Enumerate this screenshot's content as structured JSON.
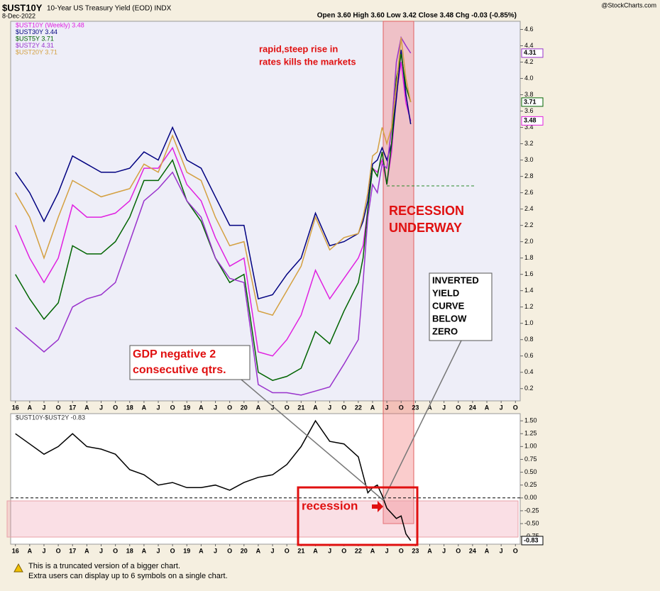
{
  "header": {
    "symbol": "$UST10Y",
    "description": "10-Year US Treasury Yield (EOD) INDX",
    "date": "8-Dec-2022",
    "source": "@StockCharts.com",
    "quote": "Open 3.60 High 3.60 Low 3.42 Close 3.48 Chg -0.03 (-0.85%)"
  },
  "chart_data": [
    {
      "type": "line",
      "x": [
        "2016-01",
        "2016-04",
        "2016-07",
        "2016-10",
        "2017-01",
        "2017-04",
        "2017-07",
        "2017-10",
        "2018-01",
        "2018-04",
        "2018-07",
        "2018-10",
        "2019-01",
        "2019-04",
        "2019-07",
        "2019-10",
        "2020-01",
        "2020-04",
        "2020-07",
        "2020-10",
        "2021-01",
        "2021-04",
        "2021-07",
        "2021-10",
        "2022-01",
        "2022-02",
        "2022-03",
        "2022-04",
        "2022-05",
        "2022-06",
        "2022-07",
        "2022-08",
        "2022-09",
        "2022-10",
        "2022-11",
        "2022-12"
      ],
      "series": [
        {
          "name": "$UST10Y (Weekly) 3.48",
          "color": "#e020e0",
          "values": [
            2.2,
            1.8,
            1.5,
            1.8,
            2.45,
            2.3,
            2.3,
            2.35,
            2.5,
            2.9,
            2.9,
            3.15,
            2.7,
            2.5,
            2.05,
            1.7,
            1.8,
            0.65,
            0.6,
            0.8,
            1.1,
            1.65,
            1.3,
            1.55,
            1.8,
            1.95,
            2.4,
            2.9,
            2.85,
            3.0,
            2.7,
            3.1,
            3.8,
            4.2,
            3.7,
            3.48
          ]
        },
        {
          "name": "$UST30Y 3.44",
          "color": "#000080",
          "values": [
            2.85,
            2.6,
            2.25,
            2.6,
            3.05,
            2.95,
            2.85,
            2.85,
            2.9,
            3.1,
            3.0,
            3.4,
            3.0,
            2.9,
            2.55,
            2.2,
            2.2,
            1.3,
            1.35,
            1.6,
            1.8,
            2.35,
            1.95,
            2.0,
            2.1,
            2.25,
            2.5,
            2.95,
            3.0,
            3.15,
            3.0,
            3.2,
            3.75,
            4.35,
            3.8,
            3.44
          ]
        },
        {
          "name": "$UST5Y 3.71",
          "color": "#006400",
          "values": [
            1.6,
            1.3,
            1.05,
            1.25,
            1.95,
            1.85,
            1.85,
            2.0,
            2.3,
            2.75,
            2.75,
            3.0,
            2.5,
            2.25,
            1.8,
            1.5,
            1.6,
            0.4,
            0.3,
            0.35,
            0.45,
            0.9,
            0.75,
            1.15,
            1.5,
            1.8,
            2.4,
            2.9,
            2.8,
            3.1,
            2.7,
            3.2,
            4.0,
            4.3,
            3.9,
            3.71
          ]
        },
        {
          "name": "$UST2Y 4.31",
          "color": "#9932cc",
          "values": [
            0.95,
            0.8,
            0.65,
            0.8,
            1.2,
            1.3,
            1.35,
            1.5,
            2.0,
            2.5,
            2.65,
            2.85,
            2.5,
            2.3,
            1.8,
            1.55,
            1.5,
            0.25,
            0.15,
            0.15,
            0.12,
            0.17,
            0.22,
            0.5,
            0.8,
            1.5,
            2.3,
            2.7,
            2.6,
            2.95,
            2.9,
            3.4,
            4.2,
            4.5,
            4.4,
            4.31
          ]
        },
        {
          "name": "$UST20Y 3.71",
          "color": "#d4a040",
          "values": [
            2.6,
            2.3,
            1.8,
            2.3,
            2.75,
            2.65,
            2.55,
            2.6,
            2.65,
            2.95,
            2.85,
            3.3,
            2.85,
            2.75,
            2.3,
            1.95,
            2.0,
            1.15,
            1.1,
            1.4,
            1.7,
            2.3,
            1.9,
            2.05,
            2.1,
            2.3,
            2.6,
            3.05,
            3.1,
            3.4,
            3.2,
            3.4,
            3.9,
            4.5,
            4.0,
            3.71
          ]
        }
      ],
      "xlim": [
        "2015-12",
        "2024-11"
      ],
      "xticks": [
        {
          "value": "2016-01",
          "label": "16"
        },
        {
          "value": "2016-04",
          "label": "A"
        },
        {
          "value": "2016-07",
          "label": "J"
        },
        {
          "value": "2016-10",
          "label": "O"
        },
        {
          "value": "2017-01",
          "label": "17"
        },
        {
          "value": "2017-04",
          "label": "A"
        },
        {
          "value": "2017-07",
          "label": "J"
        },
        {
          "value": "2017-10",
          "label": "O"
        },
        {
          "value": "2018-01",
          "label": "18"
        },
        {
          "value": "2018-04",
          "label": "A"
        },
        {
          "value": "2018-07",
          "label": "J"
        },
        {
          "value": "2018-10",
          "label": "O"
        },
        {
          "value": "2019-01",
          "label": "19"
        },
        {
          "value": "2019-04",
          "label": "A"
        },
        {
          "value": "2019-07",
          "label": "J"
        },
        {
          "value": "2019-10",
          "label": "O"
        },
        {
          "value": "2020-01",
          "label": "20"
        },
        {
          "value": "2020-04",
          "label": "A"
        },
        {
          "value": "2020-07",
          "label": "J"
        },
        {
          "value": "2020-10",
          "label": "O"
        },
        {
          "value": "2021-01",
          "label": "21"
        },
        {
          "value": "2021-04",
          "label": "A"
        },
        {
          "value": "2021-07",
          "label": "J"
        },
        {
          "value": "2021-10",
          "label": "O"
        },
        {
          "value": "2022-01",
          "label": "22"
        },
        {
          "value": "2022-04",
          "label": "A"
        },
        {
          "value": "2022-07",
          "label": "J"
        },
        {
          "value": "2022-10",
          "label": "O"
        },
        {
          "value": "2023-01",
          "label": "23"
        },
        {
          "value": "2023-04",
          "label": "A"
        },
        {
          "value": "2023-07",
          "label": "J"
        },
        {
          "value": "2023-10",
          "label": "O"
        },
        {
          "value": "2024-01",
          "label": "24"
        },
        {
          "value": "2024-04",
          "label": "A"
        },
        {
          "value": "2024-07",
          "label": "J"
        },
        {
          "value": "2024-10",
          "label": "O"
        }
      ],
      "ylim": [
        0.05,
        4.7
      ],
      "yticks": [
        0.2,
        0.4,
        0.6,
        0.8,
        {
          "value": 1,
          "label": "1.0"
        },
        1.2,
        1.4,
        1.6,
        1.8,
        {
          "value": 2,
          "label": "2.0"
        },
        2.2,
        2.4,
        2.6,
        2.8,
        {
          "value": 3,
          "label": "3.0"
        },
        3.2,
        3.4,
        3.6,
        3.8,
        {
          "value": 4,
          "label": "4.0"
        },
        4.2,
        4.4,
        4.6
      ],
      "last_value_tags": [
        {
          "value": 4.31,
          "color": "#9932cc"
        },
        {
          "value": 3.71,
          "color": "#006400"
        },
        {
          "value": 3.48,
          "color": "#e020e0"
        }
      ],
      "annotations": {
        "rise": [
          "rapid,steep rise in",
          "rates kills the markets"
        ],
        "recession_underway": [
          "RECESSION",
          "UNDERWAY"
        ],
        "inverted": [
          "INVERTED",
          "YIELD",
          "CURVE",
          "BELOW",
          "ZERO"
        ]
      }
    },
    {
      "type": "line",
      "x": [
        "2016-01",
        "2016-04",
        "2016-07",
        "2016-10",
        "2017-01",
        "2017-04",
        "2017-07",
        "2017-10",
        "2018-01",
        "2018-04",
        "2018-07",
        "2018-10",
        "2019-01",
        "2019-04",
        "2019-07",
        "2019-10",
        "2020-01",
        "2020-04",
        "2020-07",
        "2020-10",
        "2021-01",
        "2021-04",
        "2021-07",
        "2021-10",
        "2022-01",
        "2022-02",
        "2022-03",
        "2022-04",
        "2022-05",
        "2022-06",
        "2022-07",
        "2022-08",
        "2022-09",
        "2022-10",
        "2022-11",
        "2022-12"
      ],
      "series": [
        {
          "name": "$UST10Y-$UST2Y -0.83",
          "color": "#000000",
          "values": [
            1.25,
            1.05,
            0.85,
            1.0,
            1.25,
            1.0,
            0.95,
            0.85,
            0.55,
            0.45,
            0.25,
            0.3,
            0.2,
            0.2,
            0.25,
            0.15,
            0.3,
            0.4,
            0.45,
            0.65,
            1.0,
            1.5,
            1.1,
            1.05,
            0.8,
            0.45,
            0.1,
            0.2,
            0.25,
            0.05,
            -0.2,
            -0.3,
            -0.4,
            -0.35,
            -0.7,
            -0.83
          ]
        }
      ],
      "ylim": [
        -0.9,
        1.64
      ],
      "yticks": [
        {
          "value": 1.5,
          "label": "1.50"
        },
        1.25,
        {
          "value": 1,
          "label": "1.00"
        },
        0.75,
        {
          "value": 0.5,
          "label": "0.50"
        },
        0.25,
        {
          "value": 0,
          "label": "0.00"
        },
        -0.25,
        {
          "value": -0.5,
          "label": "-0.50"
        },
        -0.75
      ],
      "last_value_tags": [
        {
          "value": -0.83,
          "color": "#000000"
        }
      ],
      "annotations": {
        "gdp": [
          "GDP negative 2",
          "consecutive qtrs."
        ],
        "recession": [
          "recession"
        ]
      }
    }
  ],
  "footer": {
    "lines": [
      "This is a truncated version of a bigger chart.",
      "Extra users can display up to 6 symbols on a single chart."
    ]
  }
}
